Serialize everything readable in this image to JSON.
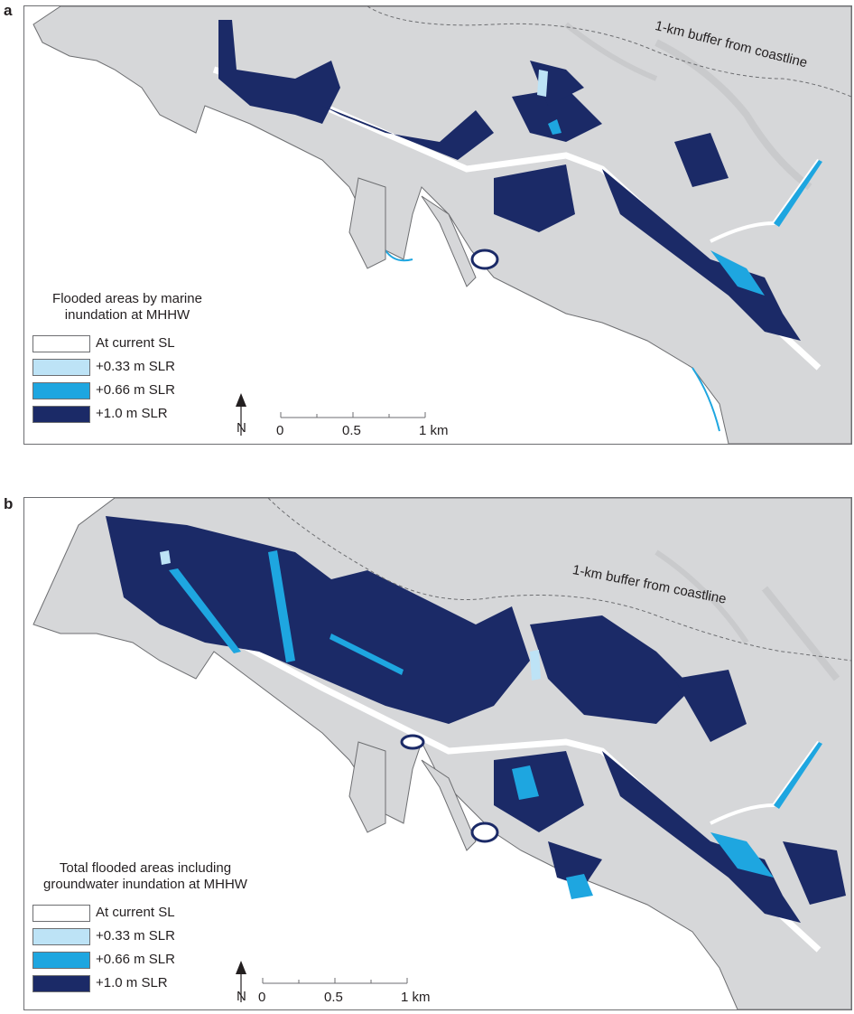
{
  "colors": {
    "current_sl": "#ffffff",
    "slr_033": "#bde3f6",
    "slr_066": "#1ea6e0",
    "slr_100": "#1b2a67",
    "land": "#d6d7d9",
    "outline": "#6d6e71"
  },
  "panels": [
    {
      "letter": "a",
      "legend_title_line1": "Flooded areas by marine",
      "legend_title_line2": "inundation at MHHW",
      "buffer_label": "1-km buffer from coastline",
      "legend": [
        {
          "label": "At current SL",
          "color": "#ffffff"
        },
        {
          "label": "+0.33 m SLR",
          "color": "#bde3f6"
        },
        {
          "label": "+0.66 m SLR",
          "color": "#1ea6e0"
        },
        {
          "label": "+1.0 m SLR",
          "color": "#1b2a67"
        }
      ],
      "north_label": "N",
      "scale": {
        "ticks": [
          "0",
          "0.5",
          "1 km"
        ]
      }
    },
    {
      "letter": "b",
      "legend_title_line1": "Total flooded areas including",
      "legend_title_line2": "groundwater inundation at MHHW",
      "buffer_label": "1-km buffer from coastline",
      "legend": [
        {
          "label": "At current SL",
          "color": "#ffffff"
        },
        {
          "label": "+0.33 m SLR",
          "color": "#bde3f6"
        },
        {
          "label": "+0.66 m SLR",
          "color": "#1ea6e0"
        },
        {
          "label": "+1.0 m SLR",
          "color": "#1b2a67"
        }
      ],
      "north_label": "N",
      "scale": {
        "ticks": [
          "0",
          "0.5",
          "1 km"
        ]
      }
    }
  ]
}
